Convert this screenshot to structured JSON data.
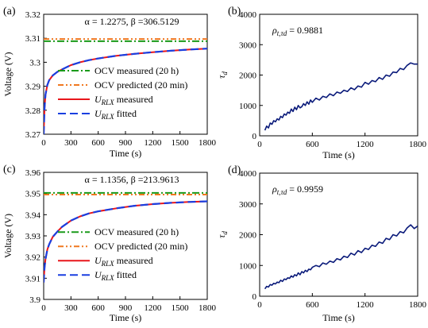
{
  "chart_data": [
    {
      "panel": "(a)",
      "type": "line",
      "annotation": {
        "alpha": "α = 1.2275",
        "beta": "β =306.5129"
      },
      "xlabel": "Time (s)",
      "ylabel": "Voltage (V)",
      "xlim": [
        0,
        1800
      ],
      "ylim": [
        3.27,
        3.32
      ],
      "xticks": [
        0,
        300,
        600,
        900,
        1200,
        1500,
        1800
      ],
      "yticks": [
        3.27,
        3.28,
        3.29,
        3.3,
        3.31,
        3.32
      ],
      "ytick_labels": [
        "3.27",
        "3.28",
        "3.29",
        "3.3",
        "3.31",
        "3.32"
      ],
      "legend_position": "lower-right",
      "series": [
        {
          "name": "OCV measured (20 h)",
          "kind": "hline",
          "value": 3.3088,
          "color": "#1a9a1a"
        },
        {
          "name": "OCV predicted (20 min)",
          "kind": "hline",
          "value": 3.3097,
          "color": "#f07820"
        },
        {
          "name": "U_RLX measured",
          "kind": "curve",
          "color": "#e8161b",
          "x": [
            0,
            5,
            10,
            20,
            40,
            60,
            100,
            150,
            200,
            300,
            400,
            500,
            600,
            800,
            1000,
            1200,
            1400,
            1600,
            1800
          ],
          "y": [
            3.27,
            3.276,
            3.281,
            3.2865,
            3.2905,
            3.2925,
            3.2945,
            3.296,
            3.297,
            3.2988,
            3.3,
            3.3009,
            3.3016,
            3.3027,
            3.3035,
            3.3042,
            3.3048,
            3.3053,
            3.3057
          ]
        },
        {
          "name": "U_RLX fitted",
          "kind": "curve",
          "color": "#1a3fe0",
          "x": [
            0,
            5,
            10,
            20,
            40,
            60,
            100,
            150,
            200,
            300,
            400,
            500,
            600,
            800,
            1000,
            1200,
            1400,
            1600,
            1800
          ],
          "y": [
            3.27,
            3.276,
            3.281,
            3.2865,
            3.2905,
            3.2925,
            3.2945,
            3.296,
            3.297,
            3.2988,
            3.3,
            3.3009,
            3.3016,
            3.3027,
            3.3035,
            3.3042,
            3.3048,
            3.3053,
            3.3057
          ]
        }
      ],
      "legend": [
        {
          "text": "OCV measured (20 h)"
        },
        {
          "text": "OCV predicted (20 min)"
        },
        {
          "sym": "U",
          "sub": "RLX",
          "rest": " measured"
        },
        {
          "sym": "U",
          "sub": "RLX",
          "rest": " fitted"
        }
      ]
    },
    {
      "panel": "(b)",
      "type": "line",
      "annotation": {
        "sym": "ρ",
        "sub": "t,τd",
        "rest": " = 0.9881"
      },
      "xlabel": "Time (s)",
      "ylabel": "τd",
      "ylabel_parts": {
        "sym": "τ",
        "sub": "d"
      },
      "xlim": [
        0,
        1800
      ],
      "ylim": [
        0,
        4000
      ],
      "xticks": [
        0,
        600,
        1200,
        1800
      ],
      "yticks": [
        0,
        1000,
        2000,
        3000,
        4000
      ],
      "series": [
        {
          "name": "",
          "color": "#0a1a7a",
          "x": [
            60,
            80,
            100,
            120,
            140,
            160,
            180,
            200,
            220,
            240,
            260,
            280,
            300,
            320,
            340,
            360,
            380,
            400,
            420,
            440,
            460,
            480,
            500,
            520,
            540,
            560,
            580,
            600,
            640,
            680,
            720,
            760,
            800,
            840,
            880,
            920,
            960,
            1000,
            1040,
            1080,
            1120,
            1160,
            1200,
            1240,
            1280,
            1320,
            1360,
            1400,
            1440,
            1480,
            1520,
            1560,
            1600,
            1640,
            1680,
            1720,
            1760,
            1800
          ],
          "y": [
            180,
            320,
            260,
            420,
            380,
            500,
            460,
            560,
            520,
            640,
            600,
            720,
            680,
            780,
            740,
            880,
            800,
            940,
            860,
            1000,
            920,
            960,
            1060,
            1000,
            1120,
            1040,
            1180,
            1100,
            1240,
            1180,
            1300,
            1260,
            1380,
            1320,
            1440,
            1400,
            1500,
            1460,
            1580,
            1520,
            1640,
            1600,
            1760,
            1700,
            1820,
            1780,
            1920,
            1860,
            2000,
            1960,
            2100,
            2080,
            2220,
            2180,
            2320,
            2400,
            2360,
            2360
          ]
        }
      ]
    },
    {
      "panel": "(c)",
      "type": "line",
      "annotation": {
        "alpha": "α = 1.1356",
        "beta": "β =213.9613"
      },
      "xlabel": "Time (s)",
      "ylabel": "Voltage (V)",
      "xlim": [
        0,
        1800
      ],
      "ylim": [
        3.9,
        3.96
      ],
      "xticks": [
        0,
        300,
        600,
        900,
        1200,
        1500,
        1800
      ],
      "yticks": [
        3.9,
        3.91,
        3.92,
        3.93,
        3.94,
        3.95,
        3.96
      ],
      "ytick_labels": [
        "3.9",
        "3.91",
        "3.92",
        "3.93",
        "3.94",
        "3.95",
        "3.96"
      ],
      "legend_position": "lower-right",
      "series": [
        {
          "name": "OCV measured (20 h)",
          "kind": "hline",
          "value": 3.9503,
          "color": "#1a9a1a"
        },
        {
          "name": "OCV predicted (20 min)",
          "kind": "hline",
          "value": 3.9495,
          "color": "#f07820"
        },
        {
          "name": "U_RLX measured",
          "kind": "curve",
          "color": "#e8161b",
          "x": [
            0,
            5,
            10,
            20,
            40,
            60,
            100,
            150,
            200,
            300,
            400,
            500,
            600,
            800,
            1000,
            1200,
            1400,
            1600,
            1800
          ],
          "y": [
            3.908,
            3.912,
            3.915,
            3.919,
            3.9235,
            3.926,
            3.9295,
            3.932,
            3.9342,
            3.9372,
            3.9392,
            3.9406,
            3.9416,
            3.943,
            3.9442,
            3.945,
            3.9456,
            3.946,
            3.9463
          ]
        },
        {
          "name": "U_RLX fitted",
          "kind": "curve",
          "color": "#1a3fe0",
          "x": [
            0,
            5,
            10,
            20,
            40,
            60,
            100,
            150,
            200,
            300,
            400,
            500,
            600,
            800,
            1000,
            1200,
            1400,
            1600,
            1800
          ],
          "y": [
            3.908,
            3.912,
            3.915,
            3.919,
            3.9235,
            3.926,
            3.9295,
            3.932,
            3.9342,
            3.9372,
            3.9392,
            3.9406,
            3.9416,
            3.943,
            3.9442,
            3.945,
            3.9456,
            3.946,
            3.9463
          ]
        }
      ],
      "legend": [
        {
          "text": "OCV measured (20 h)"
        },
        {
          "text": "OCV predicted (20 min)"
        },
        {
          "sym": "U",
          "sub": "RLX",
          "rest": " measured"
        },
        {
          "sym": "U",
          "sub": "RLX",
          "rest": " fitted"
        }
      ]
    },
    {
      "panel": "(d)",
      "type": "line",
      "annotation": {
        "sym": "ρ",
        "sub": "t,τd",
        "rest": " = 0.9959"
      },
      "xlabel": "Time (s)",
      "ylabel": "τd",
      "ylabel_parts": {
        "sym": "τ",
        "sub": "d"
      },
      "xlim": [
        0,
        1800
      ],
      "ylim": [
        0,
        4000
      ],
      "xticks": [
        0,
        600,
        1200,
        1800
      ],
      "yticks": [
        0,
        1000,
        2000,
        3000,
        4000
      ],
      "series": [
        {
          "name": "",
          "color": "#0a1a7a",
          "x": [
            60,
            80,
            100,
            120,
            140,
            160,
            180,
            200,
            220,
            240,
            260,
            280,
            300,
            320,
            340,
            360,
            380,
            400,
            420,
            440,
            460,
            480,
            500,
            520,
            540,
            560,
            580,
            600,
            640,
            680,
            720,
            760,
            800,
            840,
            880,
            920,
            960,
            1000,
            1040,
            1080,
            1120,
            1160,
            1200,
            1240,
            1280,
            1320,
            1360,
            1400,
            1440,
            1480,
            1520,
            1560,
            1600,
            1640,
            1680,
            1720,
            1760,
            1800
          ],
          "y": [
            240,
            320,
            300,
            380,
            360,
            420,
            400,
            460,
            440,
            520,
            480,
            560,
            540,
            600,
            580,
            660,
            620,
            700,
            660,
            760,
            700,
            800,
            760,
            840,
            800,
            880,
            860,
            940,
            1000,
            960,
            1080,
            1040,
            1140,
            1100,
            1220,
            1180,
            1300,
            1260,
            1400,
            1340,
            1480,
            1420,
            1560,
            1520,
            1660,
            1620,
            1760,
            1720,
            1880,
            1840,
            2000,
            1960,
            2100,
            2060,
            2220,
            2320,
            2200,
            2280
          ]
        }
      ]
    }
  ]
}
